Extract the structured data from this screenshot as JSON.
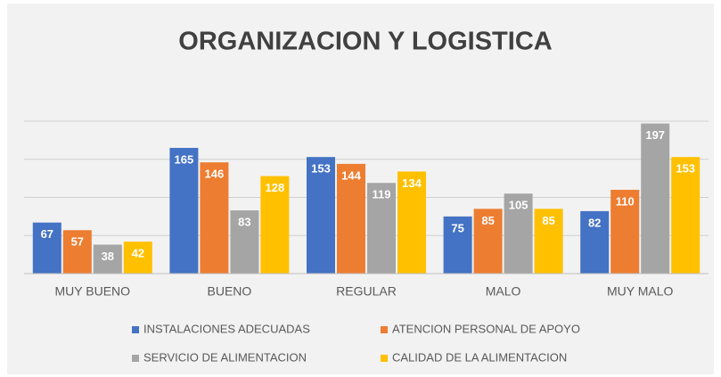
{
  "chart_data": {
    "type": "bar",
    "title": "ORGANIZACION Y LOGISTICA",
    "categories": [
      "MUY BUENO",
      "BUENO",
      "REGULAR",
      "MALO",
      "MUY MALO"
    ],
    "series": [
      {
        "name": "INSTALACIONES ADECUADAS",
        "color": "#4472c4",
        "values": [
          67,
          165,
          153,
          75,
          82
        ]
      },
      {
        "name": "ATENCION PERSONAL DE APOYO",
        "color": "#ed7d31",
        "values": [
          57,
          146,
          144,
          85,
          110
        ]
      },
      {
        "name": "SERVICIO DE ALIMENTACION",
        "color": "#a5a5a5",
        "values": [
          38,
          83,
          119,
          105,
          197
        ]
      },
      {
        "name": "CALIDAD DE LA ALIMENTACION",
        "color": "#ffc000",
        "values": [
          42,
          128,
          134,
          85,
          153
        ]
      }
    ],
    "ylim": [
      0,
      200
    ],
    "yticks": [
      0,
      50,
      100,
      150,
      200
    ],
    "grid": true,
    "legend": "bottom"
  }
}
